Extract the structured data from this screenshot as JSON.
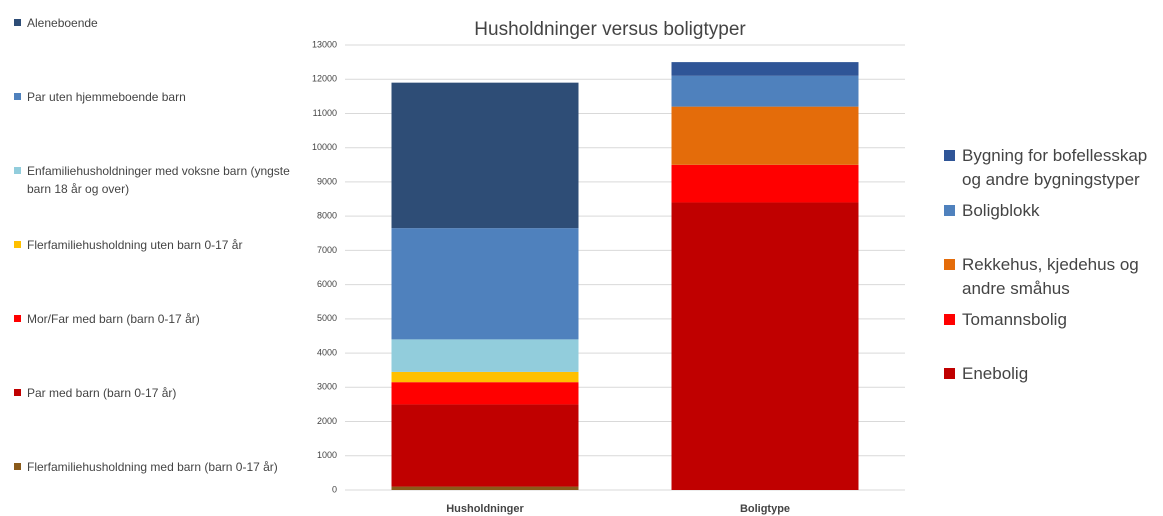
{
  "chart_data": {
    "type": "stacked_bar",
    "title": "Husholdninger versus boligtyper",
    "categories": [
      "Husholdninger",
      "Boligtype"
    ],
    "series": [
      {
        "name": "Flerfamiliehusholdning med barn (barn 0-17 år)",
        "color": "#8a5a1a",
        "values": [
          100,
          null
        ]
      },
      {
        "name": "Par med barn (barn 0-17 år)",
        "color": "#c00000",
        "values": [
          2400,
          null
        ]
      },
      {
        "name": "Mor/Far med barn (barn 0-17 år)",
        "color": "#ff0000",
        "values": [
          650,
          null
        ]
      },
      {
        "name": "Flerfamiliehusholdning uten barn 0-17 år",
        "color": "#ffc000",
        "values": [
          300,
          null
        ]
      },
      {
        "name": "Enfamiliehusholdninger med voksne barn (yngste barn 18 år og over)",
        "color": "#92cddc",
        "values": [
          950,
          null
        ]
      },
      {
        "name": "Par uten hjemmeboende barn",
        "color": "#4f81bd",
        "values": [
          3250,
          null
        ]
      },
      {
        "name": "Aleneboende",
        "color": "#2e4d76",
        "values": [
          4250,
          null
        ]
      },
      {
        "name": "Enebolig",
        "color": "#c00000",
        "values": [
          null,
          8400
        ]
      },
      {
        "name": "Tomannsbolig",
        "color": "#ff0000",
        "values": [
          null,
          1100
        ]
      },
      {
        "name": "Rekkehus, kjedehus og andre småhus",
        "color": "#e46c0a",
        "values": [
          null,
          1700
        ]
      },
      {
        "name": "Boligblokk",
        "color": "#4f81bd",
        "values": [
          null,
          900
        ]
      },
      {
        "name": "Bygning for bofellesskap og andre bygningstyper",
        "color": "#2f5597",
        "values": [
          null,
          400
        ]
      }
    ],
    "ylim": [
      0,
      13000
    ],
    "yticks": [
      0,
      1000,
      2000,
      3000,
      4000,
      5000,
      6000,
      7000,
      8000,
      9000,
      10000,
      11000,
      12000,
      13000
    ],
    "grid": true
  }
}
